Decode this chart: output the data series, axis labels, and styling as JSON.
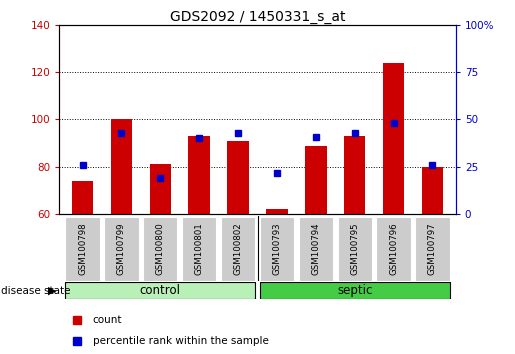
{
  "title": "GDS2092 / 1450331_s_at",
  "samples": [
    "GSM100798",
    "GSM100799",
    "GSM100800",
    "GSM100801",
    "GSM100802",
    "GSM100793",
    "GSM100794",
    "GSM100795",
    "GSM100796",
    "GSM100797"
  ],
  "counts": [
    74,
    100,
    81,
    93,
    91,
    62,
    89,
    93,
    124,
    80
  ],
  "percentiles": [
    26,
    43,
    19,
    40,
    43,
    22,
    41,
    43,
    48,
    26
  ],
  "ylim_left": [
    60,
    140
  ],
  "ylim_right": [
    0,
    100
  ],
  "yticks_left": [
    60,
    80,
    100,
    120,
    140
  ],
  "yticks_right": [
    0,
    25,
    50,
    75,
    100
  ],
  "bar_color": "#cc0000",
  "marker_color": "#0000cc",
  "bar_bottom": 60,
  "groups": [
    {
      "label": "control",
      "indices": [
        0,
        1,
        2,
        3,
        4
      ],
      "color": "#b8f0b8"
    },
    {
      "label": "septic",
      "indices": [
        5,
        6,
        7,
        8,
        9
      ],
      "color": "#44cc44"
    }
  ],
  "group_label": "disease state",
  "legend_count": "count",
  "legend_percentile": "percentile rank within the sample",
  "grid_yticks": [
    80,
    100,
    120
  ],
  "title_fontsize": 10,
  "tick_fontsize": 7.5,
  "label_fontsize": 8.5,
  "sample_fontsize": 6.2,
  "label_box_color": "#cccccc",
  "right_axis_label_100": "100%"
}
